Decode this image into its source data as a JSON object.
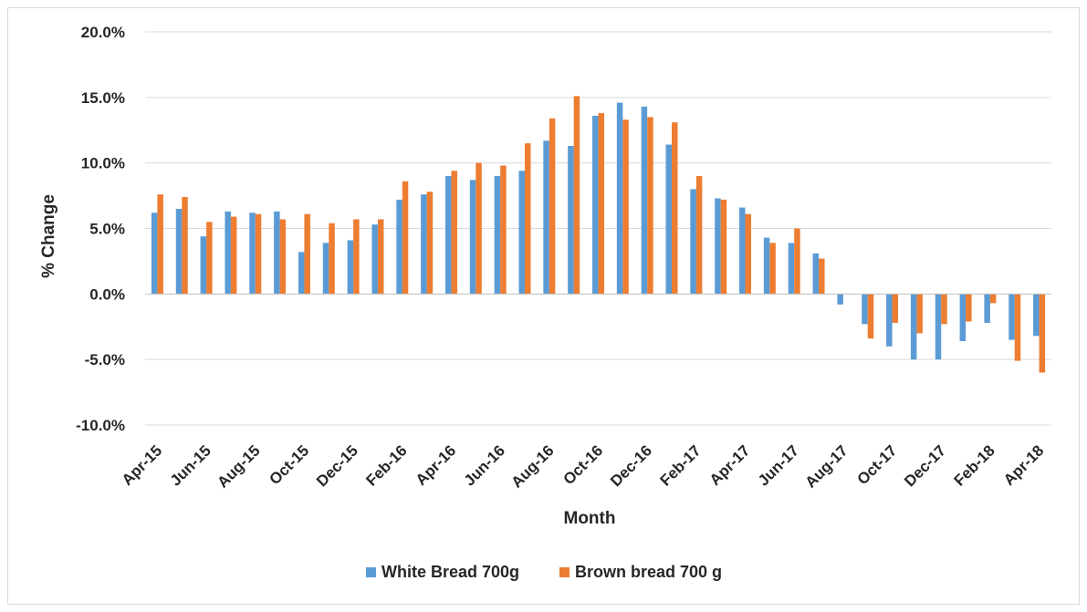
{
  "chart_data": {
    "type": "bar",
    "xlabel": "Month",
    "ylabel": "% Change",
    "ylim": [
      -10,
      20
    ],
    "yticks": [
      -10,
      -5,
      0,
      5,
      10,
      15,
      20
    ],
    "ytick_labels": [
      "-10.0%",
      "-5.0%",
      "0.0%",
      "5.0%",
      "10.0%",
      "15.0%",
      "20.0%"
    ],
    "grid": true,
    "legend_position": "bottom",
    "categories": [
      "Apr-15",
      "May-15",
      "Jun-15",
      "Jul-15",
      "Aug-15",
      "Sep-15",
      "Oct-15",
      "Nov-15",
      "Dec-15",
      "Jan-16",
      "Feb-16",
      "Mar-16",
      "Apr-16",
      "May-16",
      "Jun-16",
      "Jul-16",
      "Aug-16",
      "Sep-16",
      "Oct-16",
      "Nov-16",
      "Dec-16",
      "Jan-17",
      "Feb-17",
      "Mar-17",
      "Apr-17",
      "May-17",
      "Jun-17",
      "Jul-17",
      "Aug-17",
      "Sep-17",
      "Oct-17",
      "Nov-17",
      "Dec-17",
      "Jan-18",
      "Feb-18",
      "Mar-18",
      "Apr-18"
    ],
    "shown_tick_labels": [
      "Apr-15",
      "Jun-15",
      "Aug-15",
      "Oct-15",
      "Dec-15",
      "Feb-16",
      "Apr-16",
      "Jun-16",
      "Aug-16",
      "Oct-16",
      "Dec-16",
      "Feb-17",
      "Apr-17",
      "Jun-17",
      "Aug-17",
      "Oct-17",
      "Dec-17",
      "Feb-18",
      "Apr-18"
    ],
    "series": [
      {
        "name": "White Bread 700g",
        "color": "#5b9bd5",
        "values": [
          6.2,
          6.5,
          4.4,
          6.3,
          6.2,
          6.3,
          3.2,
          3.9,
          4.1,
          5.3,
          7.2,
          7.6,
          9.0,
          8.7,
          9.0,
          9.4,
          11.7,
          11.3,
          13.6,
          14.6,
          14.3,
          11.4,
          8.0,
          7.3,
          6.6,
          4.3,
          3.9,
          3.1,
          -0.8,
          -2.3,
          -4.0,
          -5.0,
          -5.0,
          -3.6,
          -2.2,
          -3.5,
          -3.2
        ]
      },
      {
        "name": "Brown bread 700 g",
        "color": "#ed7d31",
        "values": [
          7.6,
          7.4,
          5.5,
          5.9,
          6.1,
          5.7,
          6.1,
          5.4,
          5.7,
          5.7,
          8.6,
          7.8,
          9.4,
          10.0,
          9.8,
          11.5,
          13.4,
          15.1,
          13.8,
          13.3,
          13.5,
          13.1,
          9.0,
          7.2,
          6.1,
          3.9,
          5.0,
          2.7,
          0.0,
          -3.4,
          -2.2,
          -3.0,
          -2.3,
          -2.1,
          -0.7,
          -5.1,
          -6.0
        ]
      }
    ]
  }
}
